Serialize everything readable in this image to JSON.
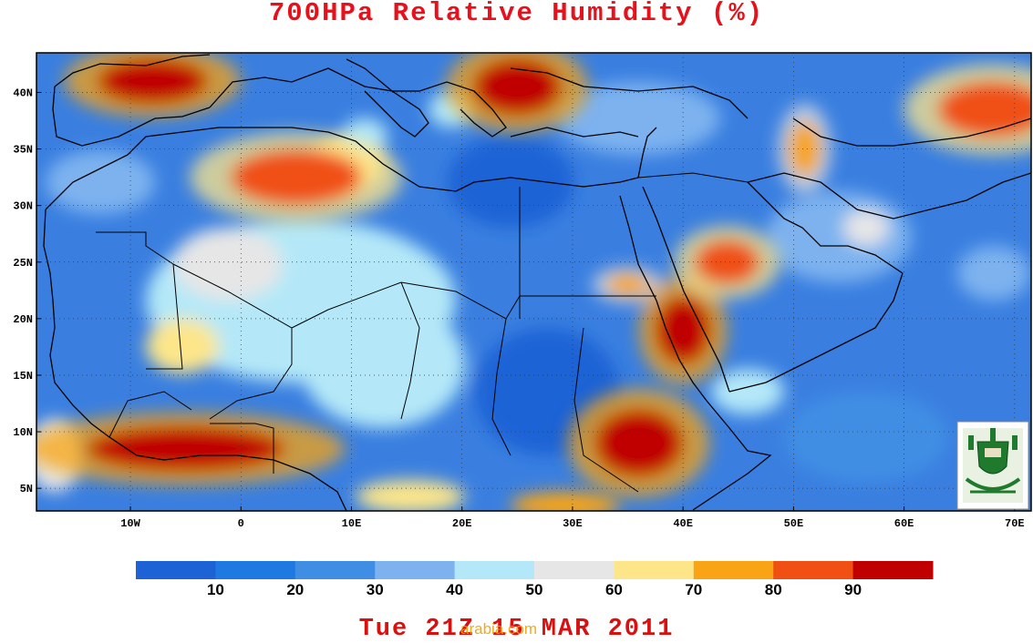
{
  "title": "700HPa Relative Humidity (%)",
  "footer": "Tue 21Z 15 MAR 2011",
  "watermark": "arabia.com",
  "map": {
    "lon_range": [
      -18.5,
      71.5
    ],
    "lat_range": [
      3,
      43.5
    ],
    "lat_ticks": [
      {
        "value": 40,
        "label": "40N"
      },
      {
        "value": 35,
        "label": "35N"
      },
      {
        "value": 30,
        "label": "30N"
      },
      {
        "value": 25,
        "label": "25N"
      },
      {
        "value": 20,
        "label": "20N"
      },
      {
        "value": 15,
        "label": "15N"
      },
      {
        "value": 10,
        "label": "10N"
      },
      {
        "value": 5,
        "label": "5N"
      }
    ],
    "lon_ticks": [
      {
        "value": -10,
        "label": "10W"
      },
      {
        "value": 0,
        "label": "0"
      },
      {
        "value": 10,
        "label": "10E"
      },
      {
        "value": 20,
        "label": "20E"
      },
      {
        "value": 30,
        "label": "30E"
      },
      {
        "value": 40,
        "label": "40E"
      },
      {
        "value": 50,
        "label": "50E"
      },
      {
        "value": 60,
        "label": "60E"
      },
      {
        "value": 70,
        "label": "70E"
      }
    ],
    "humid_regions": [
      {
        "level": 95,
        "lon": -8,
        "lat": 41,
        "rx": 5,
        "ry": 2
      },
      {
        "level": 95,
        "lon": 25,
        "lat": 40.5,
        "rx": 4,
        "ry": 2.5
      },
      {
        "level": 85,
        "lon": 5,
        "lat": 32.5,
        "rx": 6,
        "ry": 2.5
      },
      {
        "level": 85,
        "lon": 44,
        "lat": 25,
        "rx": 3,
        "ry": 2
      },
      {
        "level": 90,
        "lon": 40,
        "lat": 19,
        "rx": 2.5,
        "ry": 3
      },
      {
        "level": 95,
        "lon": 36,
        "lat": 9,
        "rx": 4,
        "ry": 3
      },
      {
        "level": 90,
        "lon": -5,
        "lat": 8.5,
        "rx": 9,
        "ry": 2
      },
      {
        "level": 75,
        "lon": 35,
        "lat": 23,
        "rx": 2,
        "ry": 1
      },
      {
        "level": 85,
        "lon": 68,
        "lat": 38.5,
        "rx": 5,
        "ry": 2.5
      },
      {
        "level": 75,
        "lon": 51,
        "lat": 35,
        "rx": 1.5,
        "ry": 2.5
      }
    ]
  },
  "colorbar": {
    "colors": [
      "#1e63d6",
      "#1e7ae0",
      "#3f8ee4",
      "#7db2ef",
      "#b4e8f8",
      "#e6e6e6",
      "#fde68a",
      "#f8a414",
      "#f05014",
      "#c00000"
    ],
    "labels": [
      "10",
      "20",
      "30",
      "40",
      "50",
      "60",
      "70",
      "80",
      "90"
    ]
  },
  "logo": {
    "name": "university-seal"
  }
}
